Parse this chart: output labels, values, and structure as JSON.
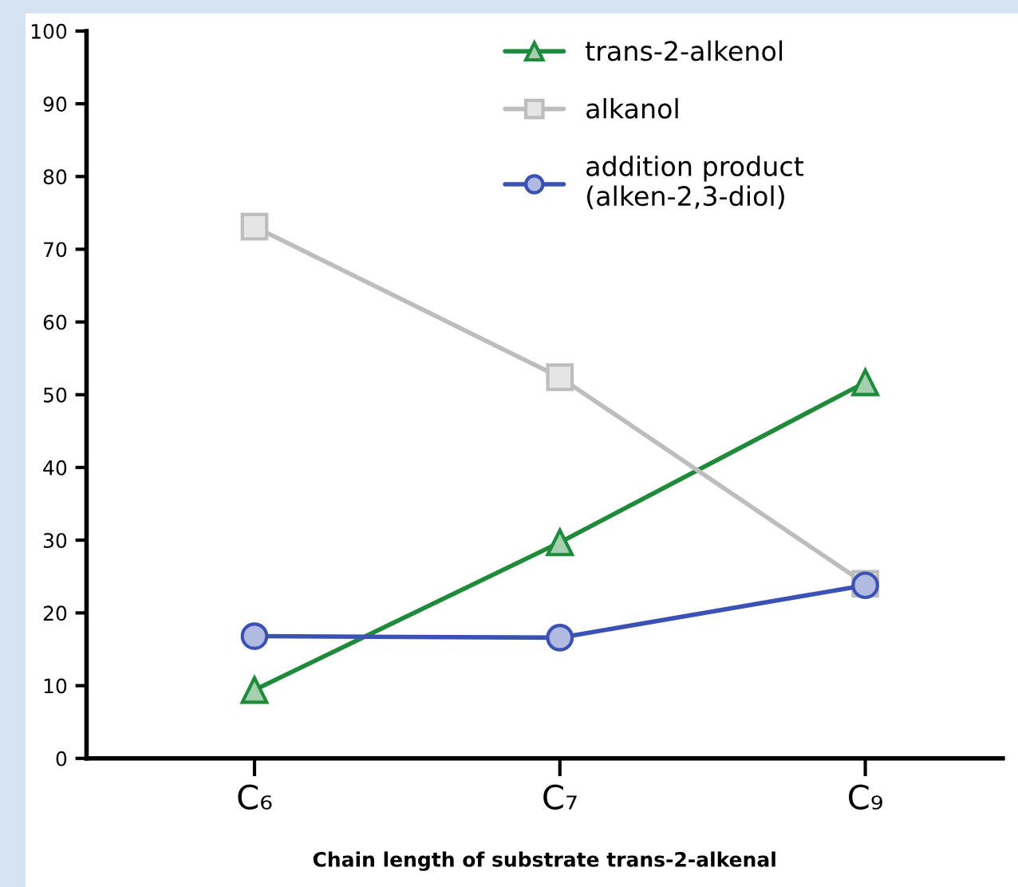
{
  "chart_data": {
    "type": "line",
    "xlabel": "Chain length of substrate trans-2-alkenal",
    "categories": [
      "C₆",
      "C₇",
      "C₉"
    ],
    "series": [
      {
        "name": "trans-2-alkenol",
        "color": "#1e8a3a",
        "marker": "triangle",
        "values": [
          9.4,
          29.7,
          51.7
        ]
      },
      {
        "name": "alkanol",
        "color": "#bdbdbd",
        "marker": "square",
        "values": [
          73.1,
          52.4,
          24.0
        ]
      },
      {
        "name": "addition product\n(alken-2,3-diol)",
        "color": "#3b52b4",
        "marker": "circle",
        "values": [
          16.8,
          16.6,
          23.8
        ]
      }
    ],
    "ylim": [
      0,
      100
    ],
    "yticks": [
      0,
      10,
      20,
      30,
      40,
      50,
      60,
      70,
      80,
      90,
      100
    ],
    "grid": false,
    "legend": "top",
    "line_style": "solid"
  }
}
